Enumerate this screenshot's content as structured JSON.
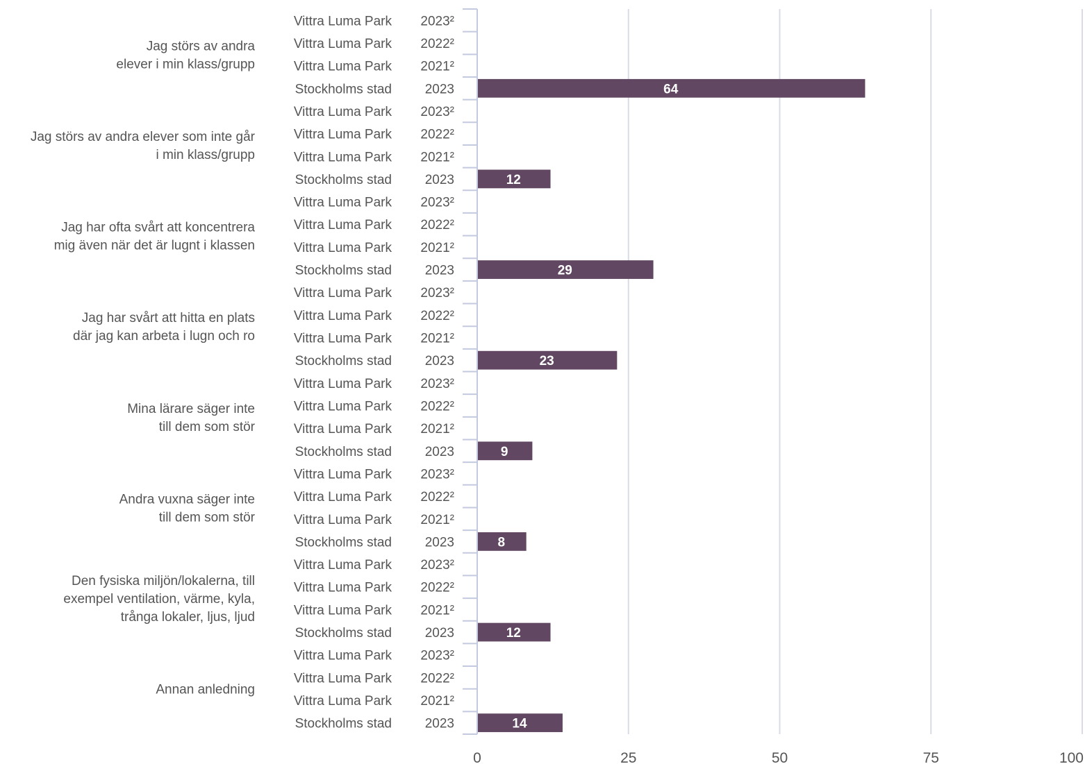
{
  "chart_data": {
    "type": "bar",
    "orientation": "horizontal",
    "xlim": [
      0,
      100
    ],
    "x_ticks": [
      "0",
      "25",
      "50",
      "75",
      "100"
    ],
    "grid": true,
    "bar_color": "#614762",
    "text_color": "#555555",
    "grid_color": "#d9dce6",
    "axis_color": "#c3c9df",
    "groups": [
      {
        "label": [
          "Jag störs av andra",
          "elever i min klass/grupp"
        ],
        "rows": [
          {
            "entity": "Vittra Luma Park",
            "year": "2023²",
            "value": null
          },
          {
            "entity": "Vittra Luma Park",
            "year": "2022²",
            "value": null
          },
          {
            "entity": "Vittra Luma Park",
            "year": "2021²",
            "value": null
          },
          {
            "entity": "Stockholms stad",
            "year": "2023",
            "value": 64
          }
        ]
      },
      {
        "label": [
          "Jag störs av andra elever som inte går",
          "i min klass/grupp"
        ],
        "rows": [
          {
            "entity": "Vittra Luma Park",
            "year": "2023²",
            "value": null
          },
          {
            "entity": "Vittra Luma Park",
            "year": "2022²",
            "value": null
          },
          {
            "entity": "Vittra Luma Park",
            "year": "2021²",
            "value": null
          },
          {
            "entity": "Stockholms stad",
            "year": "2023",
            "value": 12
          }
        ]
      },
      {
        "label": [
          "Jag har ofta svårt att koncentrera",
          "mig även när det är lugnt i klassen"
        ],
        "rows": [
          {
            "entity": "Vittra Luma Park",
            "year": "2023²",
            "value": null
          },
          {
            "entity": "Vittra Luma Park",
            "year": "2022²",
            "value": null
          },
          {
            "entity": "Vittra Luma Park",
            "year": "2021²",
            "value": null
          },
          {
            "entity": "Stockholms stad",
            "year": "2023",
            "value": 29
          }
        ]
      },
      {
        "label": [
          "Jag har svårt att hitta en plats",
          "där jag kan arbeta i lugn och ro"
        ],
        "rows": [
          {
            "entity": "Vittra Luma Park",
            "year": "2023²",
            "value": null
          },
          {
            "entity": "Vittra Luma Park",
            "year": "2022²",
            "value": null
          },
          {
            "entity": "Vittra Luma Park",
            "year": "2021²",
            "value": null
          },
          {
            "entity": "Stockholms stad",
            "year": "2023",
            "value": 23
          }
        ]
      },
      {
        "label": [
          "Mina lärare säger inte",
          "till dem som stör"
        ],
        "rows": [
          {
            "entity": "Vittra Luma Park",
            "year": "2023²",
            "value": null
          },
          {
            "entity": "Vittra Luma Park",
            "year": "2022²",
            "value": null
          },
          {
            "entity": "Vittra Luma Park",
            "year": "2021²",
            "value": null
          },
          {
            "entity": "Stockholms stad",
            "year": "2023",
            "value": 9
          }
        ]
      },
      {
        "label": [
          "Andra vuxna säger inte",
          "till dem som stör"
        ],
        "rows": [
          {
            "entity": "Vittra Luma Park",
            "year": "2023²",
            "value": null
          },
          {
            "entity": "Vittra Luma Park",
            "year": "2022²",
            "value": null
          },
          {
            "entity": "Vittra Luma Park",
            "year": "2021²",
            "value": null
          },
          {
            "entity": "Stockholms stad",
            "year": "2023",
            "value": 8
          }
        ]
      },
      {
        "label": [
          "Den fysiska miljön/lokalerna, till",
          "exempel ventilation, värme, kyla,",
          "trånga lokaler, ljus, ljud"
        ],
        "rows": [
          {
            "entity": "Vittra Luma Park",
            "year": "2023²",
            "value": null
          },
          {
            "entity": "Vittra Luma Park",
            "year": "2022²",
            "value": null
          },
          {
            "entity": "Vittra Luma Park",
            "year": "2021²",
            "value": null
          },
          {
            "entity": "Stockholms stad",
            "year": "2023",
            "value": 12
          }
        ]
      },
      {
        "label": [
          "Annan anledning"
        ],
        "rows": [
          {
            "entity": "Vittra Luma Park",
            "year": "2023²",
            "value": null
          },
          {
            "entity": "Vittra Luma Park",
            "year": "2022²",
            "value": null
          },
          {
            "entity": "Vittra Luma Park",
            "year": "2021²",
            "value": null
          },
          {
            "entity": "Stockholms stad",
            "year": "2023",
            "value": 14
          }
        ]
      }
    ]
  }
}
